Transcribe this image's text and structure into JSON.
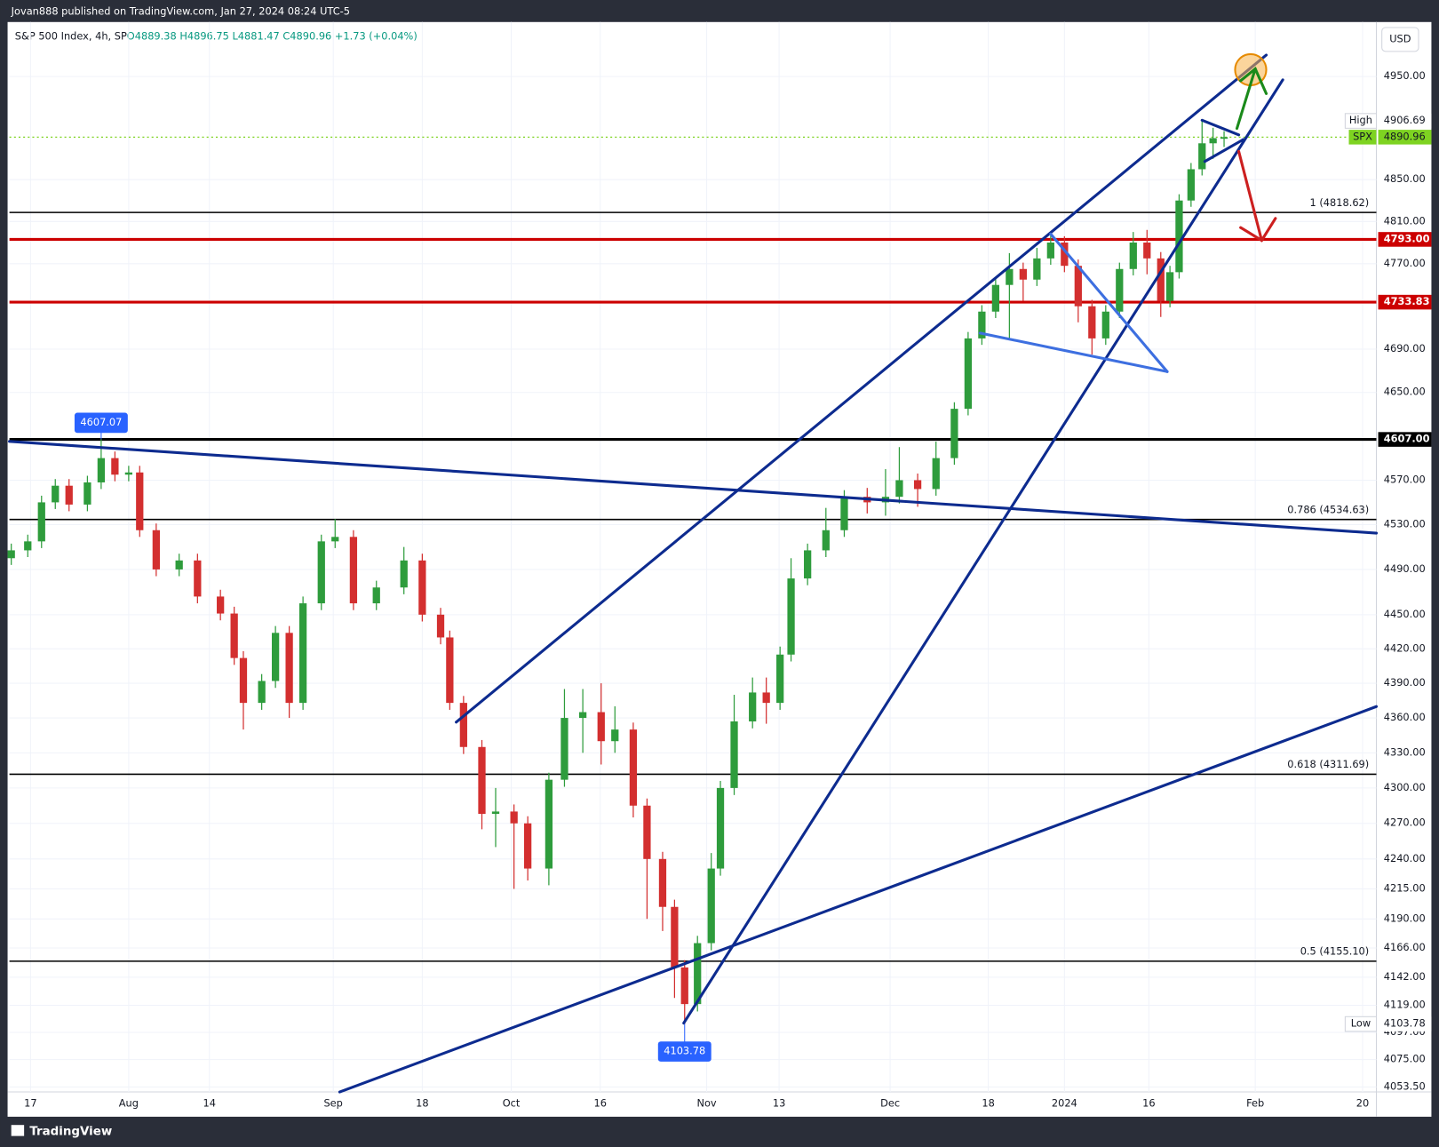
{
  "chart_data": {
    "type": "candlestick",
    "source": "Jovan888 published on TradingView.com, Jan 27, 2024 08:24 UTC-5",
    "title": "S&P 500 Index, 4h, SP",
    "legend_values": "O4889.38 H4896.75 L4881.47 C4890.96 +1.73 (+0.04%)",
    "currency": "USD",
    "branding": "TradingView",
    "log": true,
    "grid": true,
    "up_color": "#2e9c3c",
    "down_color": "#d32f2f",
    "xlim": [
      10,
      1500
    ],
    "xticks": [
      {
        "value": 33,
        "label": "17"
      },
      {
        "value": 140,
        "label": "Aug"
      },
      {
        "value": 228,
        "label": "14"
      },
      {
        "value": 363,
        "label": "Sep"
      },
      {
        "value": 460,
        "label": "18"
      },
      {
        "value": 557,
        "label": "Oct"
      },
      {
        "value": 654,
        "label": "16"
      },
      {
        "value": 770,
        "label": "Nov"
      },
      {
        "value": 849,
        "label": "13"
      },
      {
        "value": 970,
        "label": "Dec"
      },
      {
        "value": 1077,
        "label": "18"
      },
      {
        "value": 1160,
        "label": "2024"
      },
      {
        "value": 1252,
        "label": "16"
      },
      {
        "value": 1368,
        "label": "Feb"
      },
      {
        "value": 1485,
        "label": "20"
      }
    ],
    "ylim": [
      4049,
      5000
    ],
    "yticks": [
      {
        "value": 4950,
        "label": "4950.00"
      },
      {
        "value": 4850,
        "label": "4850.00"
      },
      {
        "value": 4810,
        "label": "4810.00"
      },
      {
        "value": 4770,
        "label": "4770.00"
      },
      {
        "value": 4690,
        "label": "4690.00"
      },
      {
        "value": 4650,
        "label": "4650.00"
      },
      {
        "value": 4570,
        "label": "4570.00"
      },
      {
        "value": 4530,
        "label": "4530.00"
      },
      {
        "value": 4490,
        "label": "4490.00"
      },
      {
        "value": 4450,
        "label": "4450.00"
      },
      {
        "value": 4420,
        "label": "4420.00"
      },
      {
        "value": 4390,
        "label": "4390.00"
      },
      {
        "value": 4360,
        "label": "4360.00"
      },
      {
        "value": 4330,
        "label": "4330.00"
      },
      {
        "value": 4300,
        "label": "4300.00"
      },
      {
        "value": 4270,
        "label": "4270.00"
      },
      {
        "value": 4240,
        "label": "4240.00"
      },
      {
        "value": 4215,
        "label": "4215.00"
      },
      {
        "value": 4190,
        "label": "4190.00"
      },
      {
        "value": 4166,
        "label": "4166.00"
      },
      {
        "value": 4142,
        "label": "4142.00"
      },
      {
        "value": 4119,
        "label": "4119.00"
      },
      {
        "value": 4097,
        "label": "4097.00"
      },
      {
        "value": 4075,
        "label": "4075.00"
      },
      {
        "value": 4053,
        "label": "4053.50"
      }
    ],
    "candles": {
      "x": [
        12,
        30,
        45,
        60,
        75,
        95,
        110,
        125,
        140,
        152,
        170,
        195,
        215,
        240,
        255,
        265,
        285,
        300,
        315,
        330,
        350,
        365,
        385,
        410,
        440,
        460,
        480,
        490,
        505,
        525,
        540,
        560,
        575,
        598,
        615,
        635,
        655,
        670,
        690,
        705,
        722,
        735,
        746,
        760,
        775,
        785,
        800,
        820,
        835,
        850,
        862,
        880,
        900,
        920,
        945,
        965,
        980,
        1000,
        1020,
        1040,
        1055,
        1070,
        1085,
        1100,
        1115,
        1130,
        1145,
        1160,
        1175,
        1190,
        1205,
        1220,
        1235,
        1250,
        1265,
        1275,
        1285,
        1298,
        1310,
        1322,
        1334
      ],
      "open": [
        4500,
        4507,
        4515,
        4550,
        4565,
        4548,
        4568,
        4590,
        4575,
        4577,
        4525,
        4490,
        4498,
        4466,
        4451,
        4412,
        4373,
        4392,
        4434,
        4373,
        4460,
        4515,
        4519,
        4460,
        4474,
        4498,
        4450,
        4430,
        4373,
        4335,
        4278,
        4280,
        4270,
        4232,
        4307,
        4360,
        4365,
        4340,
        4350,
        4285,
        4240,
        4200,
        4150,
        4120,
        4170,
        4232,
        4300,
        4357,
        4382,
        4373,
        4415,
        4482,
        4507,
        4525,
        4555,
        4550,
        4555,
        4570,
        4562,
        4590,
        4635,
        4700,
        4725,
        4750,
        4765,
        4755,
        4775,
        4790,
        4768,
        4730,
        4700,
        4725,
        4765,
        4790,
        4775,
        4735,
        4762,
        4830,
        4860,
        4885,
        4889.38
      ],
      "high": [
        4513,
        4521,
        4556,
        4571,
        4571,
        4574,
        4607.07,
        4596,
        4583,
        4583,
        4531,
        4504,
        4504,
        4472,
        4457,
        4418,
        4398,
        4440,
        4440,
        4466,
        4521,
        4535,
        4525,
        4480,
        4510,
        4504,
        4456,
        4436,
        4379,
        4341,
        4300,
        4286,
        4276,
        4313,
        4385,
        4385,
        4390,
        4370,
        4356,
        4291,
        4246,
        4206,
        4156,
        4176,
        4245,
        4306,
        4380,
        4395,
        4395,
        4422,
        4500,
        4513,
        4545,
        4561,
        4563,
        4580,
        4600,
        4576,
        4605,
        4641,
        4706,
        4731,
        4756,
        4780,
        4771,
        4785,
        4799,
        4796,
        4774,
        4736,
        4731,
        4771,
        4800,
        4802,
        4781,
        4768,
        4836,
        4866,
        4906.69,
        4900,
        4896.75
      ],
      "low": [
        4494,
        4501,
        4509,
        4544,
        4542,
        4542,
        4562,
        4569,
        4569,
        4519,
        4484,
        4484,
        4460,
        4445,
        4406,
        4350,
        4367,
        4386,
        4360,
        4367,
        4454,
        4509,
        4454,
        4454,
        4468,
        4444,
        4424,
        4367,
        4329,
        4265,
        4250,
        4215,
        4222,
        4218,
        4301,
        4330,
        4320,
        4330,
        4275,
        4190,
        4180,
        4125,
        4103.78,
        4114,
        4164,
        4226,
        4294,
        4351,
        4355,
        4367,
        4409,
        4476,
        4501,
        4519,
        4540,
        4538,
        4549,
        4546,
        4556,
        4584,
        4629,
        4694,
        4719,
        4700,
        4735,
        4749,
        4769,
        4762,
        4715,
        4685,
        4694,
        4719,
        4759,
        4760,
        4720,
        4729,
        4756,
        4824,
        4854,
        4870,
        4881.47
      ],
      "close": [
        4507,
        4515,
        4550,
        4565,
        4548,
        4568,
        4590,
        4575,
        4577,
        4525,
        4490,
        4498,
        4466,
        4451,
        4412,
        4373,
        4392,
        4434,
        4373,
        4460,
        4515,
        4519,
        4460,
        4474,
        4498,
        4450,
        4430,
        4373,
        4335,
        4278,
        4280,
        4270,
        4232,
        4307,
        4360,
        4365,
        4340,
        4350,
        4285,
        4240,
        4200,
        4150,
        4120,
        4170,
        4232,
        4300,
        4357,
        4382,
        4373,
        4415,
        4482,
        4507,
        4525,
        4555,
        4550,
        4555,
        4570,
        4562,
        4590,
        4635,
        4700,
        4725,
        4750,
        4765,
        4755,
        4775,
        4790,
        4768,
        4730,
        4700,
        4725,
        4765,
        4790,
        4775,
        4735,
        4762,
        4830,
        4860,
        4885,
        4890,
        4890.96
      ]
    },
    "fib_levels": [
      {
        "value": 4818.62,
        "label": "1 (4818.62)"
      },
      {
        "value": 4534.63,
        "label": "0.786 (4534.63)"
      },
      {
        "value": 4311.69,
        "label": "0.618 (4311.69)"
      },
      {
        "value": 4155.1,
        "label": "0.5 (4155.10)"
      }
    ],
    "price_lines": [
      {
        "value": 4793,
        "label": "4793.00",
        "color": "#cc0000"
      },
      {
        "value": 4733.83,
        "label": "4733.83",
        "color": "#cc0000"
      },
      {
        "value": 4607,
        "label": "4607.00",
        "color": "#000000"
      }
    ],
    "high": {
      "tag": "High",
      "value": 4906.69,
      "label": "4906.69"
    },
    "last": {
      "tag": "SPX",
      "value": 4890.96,
      "label": "4890.96",
      "color": "#7ed321"
    },
    "low": {
      "tag": "Low",
      "value": 4103.78,
      "label": "4103.78"
    },
    "callouts": [
      {
        "x": 110,
        "value": 4607.07,
        "label": "4607.07"
      },
      {
        "x": 746,
        "value": 4103.78,
        "label": "4103.78"
      }
    ]
  }
}
